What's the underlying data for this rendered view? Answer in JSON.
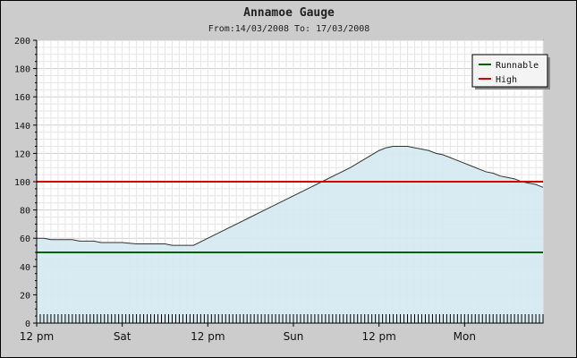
{
  "chart_data": {
    "type": "area",
    "title": "Annamoe Gauge",
    "subtitle": "From:14/03/2008 To: 17/03/2008",
    "xlabel": "",
    "ylabel": "",
    "ylim": [
      0,
      200
    ],
    "yticks": [
      0,
      20,
      40,
      60,
      80,
      100,
      120,
      140,
      160,
      180,
      200
    ],
    "xlim": [
      0,
      71
    ],
    "xticks": [
      {
        "x": 0,
        "label": "12 pm"
      },
      {
        "x": 12,
        "label": "Sat"
      },
      {
        "x": 24,
        "label": "12 pm"
      },
      {
        "x": 36,
        "label": "Sun"
      },
      {
        "x": 48,
        "label": "12 pm"
      },
      {
        "x": 60,
        "label": "Mon"
      }
    ],
    "grid": true,
    "legend_position": "top-right",
    "series": [
      {
        "name": "",
        "kind": "area",
        "color": "#333333",
        "fill": "#d4e9f2",
        "x": [
          0,
          1,
          2,
          5,
          6,
          8,
          9,
          10,
          12,
          14,
          15,
          18,
          19,
          21,
          22,
          24,
          26,
          28,
          30,
          32,
          34,
          36,
          38,
          40,
          42,
          44,
          45,
          46,
          47,
          48,
          49,
          50,
          51,
          52,
          53,
          54,
          55,
          56,
          57,
          58,
          59,
          60,
          61,
          62,
          63,
          64,
          65,
          66,
          67,
          68,
          69,
          70,
          71
        ],
        "y": [
          60,
          60,
          59,
          59,
          58,
          58,
          57,
          57,
          57,
          56,
          56,
          56,
          55,
          55,
          55,
          60,
          65,
          70,
          75,
          80,
          85,
          90,
          95,
          100,
          105,
          110,
          113,
          116,
          119,
          122,
          124,
          125,
          125,
          125,
          124,
          123,
          122,
          120,
          119,
          117,
          115,
          113,
          111,
          109,
          107,
          106,
          104,
          103,
          102,
          100,
          99,
          98,
          96
        ]
      },
      {
        "name": "Runnable",
        "kind": "hline",
        "value": 50,
        "color": "#006600"
      },
      {
        "name": "High",
        "kind": "hline",
        "value": 100,
        "color": "#dd0000"
      }
    ]
  }
}
